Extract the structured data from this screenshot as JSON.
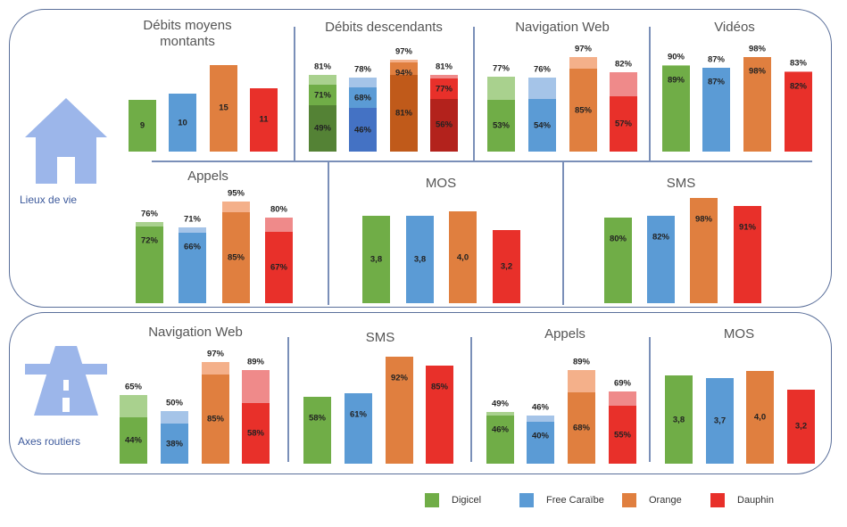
{
  "colors": {
    "Digicel": {
      "base": "#70ad47",
      "light": "#a9d18e",
      "dark": "#548235"
    },
    "Free Caraïbe": {
      "base": "#5b9bd5",
      "light": "#a5c4e8",
      "dark": "#4472c4"
    },
    "Orange": {
      "base": "#e07f3f",
      "light": "#f4b08a",
      "dark": "#c05a1a"
    },
    "Dauphin": {
      "base": "#e8302a",
      "light": "#ef8a8a",
      "dark": "#b3221c"
    }
  },
  "groups": [
    "Lieux de vie",
    "Axes routiers"
  ],
  "legend": [
    "Digicel",
    "Free Caraïbe",
    "Orange",
    "Dauphin"
  ],
  "chart_data": [
    {
      "type": "bar",
      "group": "Lieux de vie",
      "title": "Débits moyens montants",
      "unit": "",
      "bars": [
        {
          "operator": "Digicel",
          "levels": [
            "9"
          ]
        },
        {
          "operator": "Free Caraïbe",
          "levels": [
            "10"
          ]
        },
        {
          "operator": "Orange",
          "levels": [
            "15"
          ]
        },
        {
          "operator": "Dauphin",
          "levels": [
            "11"
          ]
        }
      ]
    },
    {
      "type": "bar",
      "group": "Lieux de vie",
      "title": "Débits descendants",
      "unit": "%",
      "stacked_levels": true,
      "bars": [
        {
          "operator": "Digicel",
          "levels": [
            "49%",
            "71%",
            "81%"
          ]
        },
        {
          "operator": "Free Caraïbe",
          "levels": [
            "46%",
            "68%",
            "78%"
          ]
        },
        {
          "operator": "Orange",
          "levels": [
            "81%",
            "94%",
            "97%"
          ]
        },
        {
          "operator": "Dauphin",
          "levels": [
            "56%",
            "77%",
            "81%"
          ]
        }
      ]
    },
    {
      "type": "bar",
      "group": "Lieux de vie",
      "title": "Navigation Web",
      "unit": "%",
      "bars": [
        {
          "operator": "Digicel",
          "levels": [
            "53%",
            "77%"
          ]
        },
        {
          "operator": "Free Caraïbe",
          "levels": [
            "54%",
            "76%"
          ]
        },
        {
          "operator": "Orange",
          "levels": [
            "85%",
            "97%"
          ]
        },
        {
          "operator": "Dauphin",
          "levels": [
            "57%",
            "82%"
          ]
        }
      ]
    },
    {
      "type": "bar",
      "group": "Lieux de vie",
      "title": "Vidéos",
      "unit": "%",
      "bars": [
        {
          "operator": "Digicel",
          "levels": [
            "89%",
            "90%"
          ]
        },
        {
          "operator": "Free Caraïbe",
          "levels": [
            "87%",
            "87%"
          ]
        },
        {
          "operator": "Orange",
          "levels": [
            "98%",
            "98%"
          ]
        },
        {
          "operator": "Dauphin",
          "levels": [
            "82%",
            "83%"
          ]
        }
      ]
    },
    {
      "type": "bar",
      "group": "Lieux de vie",
      "title": "Appels",
      "unit": "%",
      "bars": [
        {
          "operator": "Digicel",
          "levels": [
            "72%",
            "76%"
          ]
        },
        {
          "operator": "Free Caraïbe",
          "levels": [
            "66%",
            "71%"
          ]
        },
        {
          "operator": "Orange",
          "levels": [
            "85%",
            "95%"
          ]
        },
        {
          "operator": "Dauphin",
          "levels": [
            "67%",
            "80%"
          ]
        }
      ]
    },
    {
      "type": "bar",
      "group": "Lieux de vie",
      "title": "MOS",
      "unit": "",
      "bars": [
        {
          "operator": "Digicel",
          "levels": [
            "3,8"
          ]
        },
        {
          "operator": "Free Caraïbe",
          "levels": [
            "3,8"
          ]
        },
        {
          "operator": "Orange",
          "levels": [
            "4,0"
          ]
        },
        {
          "operator": "Dauphin",
          "levels": [
            "3,2"
          ]
        }
      ]
    },
    {
      "type": "bar",
      "group": "Lieux de vie",
      "title": "SMS",
      "unit": "%",
      "bars": [
        {
          "operator": "Digicel",
          "levels": [
            "80%"
          ]
        },
        {
          "operator": "Free Caraïbe",
          "levels": [
            "82%"
          ]
        },
        {
          "operator": "Orange",
          "levels": [
            "98%"
          ]
        },
        {
          "operator": "Dauphin",
          "levels": [
            "91%"
          ]
        }
      ]
    },
    {
      "type": "bar",
      "group": "Axes routiers",
      "title": "Navigation Web",
      "unit": "%",
      "bars": [
        {
          "operator": "Digicel",
          "levels": [
            "44%",
            "65%"
          ]
        },
        {
          "operator": "Free Caraïbe",
          "levels": [
            "38%",
            "50%"
          ]
        },
        {
          "operator": "Orange",
          "levels": [
            "85%",
            "97%"
          ]
        },
        {
          "operator": "Dauphin",
          "levels": [
            "58%",
            "89%"
          ]
        }
      ]
    },
    {
      "type": "bar",
      "group": "Axes routiers",
      "title": "SMS",
      "unit": "%",
      "bars": [
        {
          "operator": "Digicel",
          "levels": [
            "58%"
          ]
        },
        {
          "operator": "Free Caraïbe",
          "levels": [
            "61%"
          ]
        },
        {
          "operator": "Orange",
          "levels": [
            "92%"
          ]
        },
        {
          "operator": "Dauphin",
          "levels": [
            "85%"
          ]
        }
      ]
    },
    {
      "type": "bar",
      "group": "Axes routiers",
      "title": "Appels",
      "unit": "%",
      "bars": [
        {
          "operator": "Digicel",
          "levels": [
            "46%",
            "49%"
          ]
        },
        {
          "operator": "Free Caraïbe",
          "levels": [
            "40%",
            "46%"
          ]
        },
        {
          "operator": "Orange",
          "levels": [
            "68%",
            "89%"
          ]
        },
        {
          "operator": "Dauphin",
          "levels": [
            "55%",
            "69%"
          ]
        }
      ]
    },
    {
      "type": "bar",
      "group": "Axes routiers",
      "title": "MOS",
      "unit": "",
      "bars": [
        {
          "operator": "Digicel",
          "levels": [
            "3,8"
          ]
        },
        {
          "operator": "Free Caraïbe",
          "levels": [
            "3,7"
          ]
        },
        {
          "operator": "Orange",
          "levels": [
            "4,0"
          ]
        },
        {
          "operator": "Dauphin",
          "levels": [
            "3,2"
          ]
        }
      ]
    }
  ]
}
